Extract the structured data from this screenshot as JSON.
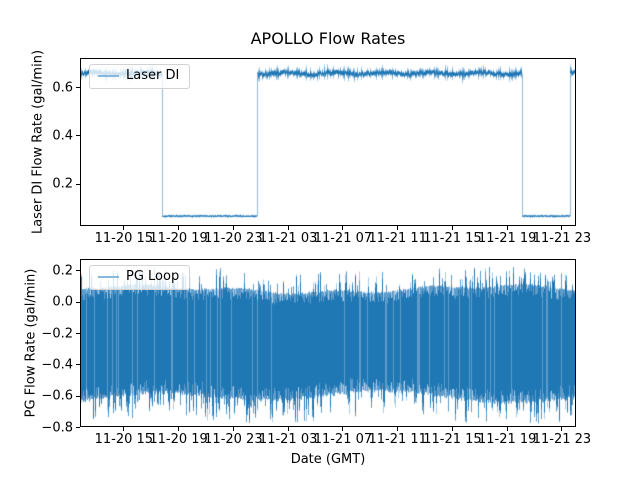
{
  "colors": {
    "series": "#1f77b4",
    "series_mid": "#5f9cca",
    "series_light": "#aacde8",
    "transition": "#8fbbdd",
    "legend_sample": "#8ab7dc",
    "axis_spine": "#000000",
    "text": "#000000",
    "background": "#ffffff"
  },
  "chart_data": [
    {
      "type": "line",
      "title": "APOLLO Flow Rates",
      "series_name": "Laser DI",
      "legend": [
        "Laser DI"
      ],
      "legend_position": "upper left",
      "ylabel": "Laser DI Flow Rate (gal/min)",
      "xlabel": "",
      "unit": "gal/min",
      "line_color": "#1f77b4",
      "x_unit": "hours since 11-20 15:00 GMT",
      "x_range_hours": [
        -3.13,
        32.95
      ],
      "x_ticks_hours": [
        0,
        4,
        8,
        12,
        16,
        20,
        24,
        28,
        32
      ],
      "x_tick_labels": [
        "11-20 15",
        "11-20 19",
        "11-20 23",
        "11-21 03",
        "11-21 07",
        "11-21 11",
        "11-21 15",
        "11-21 19",
        "11-21 23"
      ],
      "ylim": [
        0.03,
        0.72
      ],
      "yticks": [
        0.6,
        0.4,
        0.2
      ],
      "pattern": "square-wave on/off flow with sensor noise",
      "segments": [
        {
          "start_hour": -3.13,
          "end_hour": 2.76,
          "level": 0.66,
          "noise_sd": 0.008
        },
        {
          "start_hour": 2.76,
          "end_hour": 9.75,
          "level": 0.067,
          "noise_sd": 0.002
        },
        {
          "start_hour": 9.75,
          "end_hour": 29.09,
          "level": 0.66,
          "noise_sd": 0.008
        },
        {
          "start_hour": 29.09,
          "end_hour": 32.58,
          "level": 0.067,
          "noise_sd": 0.002
        },
        {
          "start_hour": 32.58,
          "end_hour": 32.95,
          "level": 0.66,
          "noise_sd": 0.008
        }
      ]
    },
    {
      "type": "line",
      "title": "",
      "series_name": "PG Loop",
      "legend": [
        "PG Loop"
      ],
      "legend_position": "upper left",
      "ylabel": "PG Flow Rate (gal/min)",
      "xlabel": "Date (GMT)",
      "unit": "gal/min",
      "line_color": "#1f77b4",
      "x_unit": "hours since 11-20 15:00 GMT",
      "x_range_hours": [
        -3.13,
        32.95
      ],
      "x_ticks_hours": [
        0,
        4,
        8,
        12,
        16,
        20,
        24,
        28,
        32
      ],
      "x_tick_labels": [
        "11-20 15",
        "11-20 19",
        "11-20 23",
        "11-21 03",
        "11-21 07",
        "11-21 11",
        "11-21 15",
        "11-21 19",
        "11-21 23"
      ],
      "ylim": [
        -0.79,
        0.27
      ],
      "yticks": [
        0.2,
        0.0,
        -0.2,
        -0.4,
        -0.6,
        -0.8
      ],
      "pattern": "dense high-frequency oscillation spanning full width",
      "band": {
        "top_typical": 0.08,
        "top_max": 0.22,
        "bottom_typical": -0.62,
        "bottom_min": -0.77
      }
    }
  ]
}
